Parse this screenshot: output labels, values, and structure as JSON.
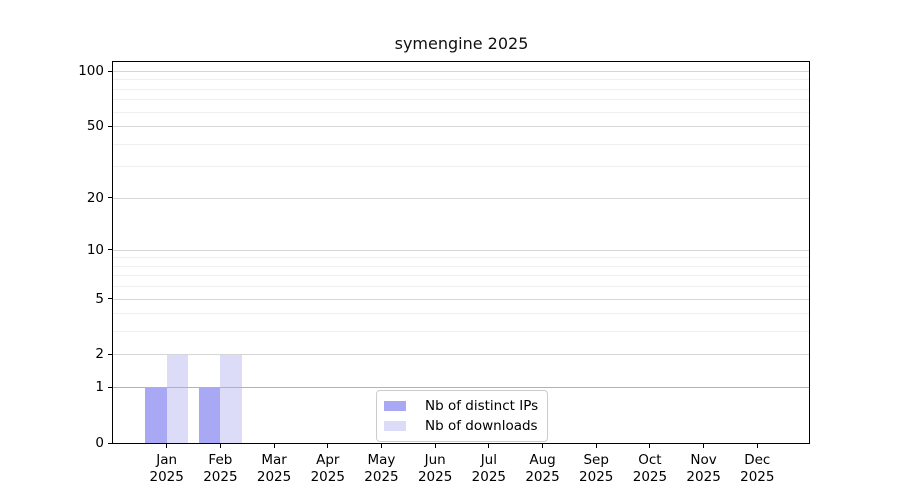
{
  "chart_data": {
    "type": "bar",
    "title": "symengine 2025",
    "categories": [
      "Jan 2025",
      "Feb 2025",
      "Mar 2025",
      "Apr 2025",
      "May 2025",
      "Jun 2025",
      "Jul 2025",
      "Aug 2025",
      "Sep 2025",
      "Oct 2025",
      "Nov 2025",
      "Dec 2025"
    ],
    "series": [
      {
        "name": "Nb of distinct IPs",
        "color": "#a8a8f4",
        "values": [
          1,
          1,
          0,
          0,
          0,
          0,
          0,
          0,
          0,
          0,
          0,
          0
        ]
      },
      {
        "name": "Nb of downloads",
        "color": "#dcdcf8",
        "values": [
          2,
          2,
          0,
          0,
          0,
          0,
          0,
          0,
          0,
          0,
          0,
          0
        ]
      }
    ],
    "yscale": "log1p",
    "ylim": [
      0,
      112
    ],
    "y_major_ticks": [
      0,
      1,
      2,
      5,
      10,
      20,
      50,
      100
    ],
    "y_minor_ticks": [
      3,
      4,
      6,
      7,
      8,
      9,
      30,
      40,
      60,
      70,
      80,
      90
    ],
    "grid": true,
    "legend_position": "lower center",
    "colors": {
      "grid_major": "#d6d6d6",
      "grid_minor": "#efefef",
      "grid_emphasis": "#b3b3b3",
      "spine": "#000000",
      "text": "#000000",
      "background": "#ffffff"
    }
  }
}
